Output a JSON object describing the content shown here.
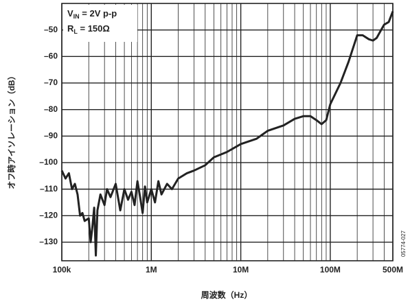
{
  "chart_data": {
    "type": "line",
    "log_x": true,
    "grid": true,
    "color": "#222222",
    "x_label": "周波数（Hz）",
    "y_label": "オフ時アイソレーション（dB）",
    "figure_id": "05774-027",
    "annotations": [
      {
        "main": "V",
        "sub": "IN",
        "rest": " = 2V p-p"
      },
      {
        "main": "R",
        "sub": "L",
        "rest": " = 150Ω"
      }
    ],
    "xlim": [
      100000,
      500000000
    ],
    "ylim": [
      -137,
      -40
    ],
    "xticks": [
      {
        "value": 100000,
        "label": "100k"
      },
      {
        "value": 1000000,
        "label": "1M"
      },
      {
        "value": 10000000,
        "label": "10M"
      },
      {
        "value": 100000000,
        "label": "100M"
      },
      {
        "value": 500000000,
        "label": "500M"
      }
    ],
    "yticks": [
      {
        "value": -130,
        "label": "–130"
      },
      {
        "value": -120,
        "label": "–120"
      },
      {
        "value": -110,
        "label": "–110"
      },
      {
        "value": -100,
        "label": "–100"
      },
      {
        "value": -90,
        "label": "–90"
      },
      {
        "value": -80,
        "label": "–80"
      },
      {
        "value": -70,
        "label": "–70"
      },
      {
        "value": -60,
        "label": "–60"
      },
      {
        "value": -50,
        "label": "–50"
      }
    ],
    "x": [
      100000,
      110000,
      120000,
      130000,
      140000,
      150000,
      160000,
      170000,
      180000,
      200000,
      210000,
      220000,
      230000,
      240000,
      250000,
      270000,
      300000,
      320000,
      350000,
      400000,
      450000,
      500000,
      550000,
      600000,
      650000,
      700000,
      750000,
      800000,
      850000,
      900000,
      1000000,
      1100000,
      1200000,
      1300000,
      1500000,
      1700000,
      2000000,
      2500000,
      3000000,
      4000000,
      5000000,
      7000000,
      10000000,
      15000000,
      20000000,
      30000000,
      40000000,
      50000000,
      60000000,
      70000000,
      80000000,
      90000000,
      100000000,
      130000000,
      160000000,
      200000000,
      230000000,
      270000000,
      300000000,
      330000000,
      370000000,
      400000000,
      450000000,
      500000000
    ],
    "values": [
      -103,
      -106,
      -104,
      -110,
      -108,
      -112,
      -120,
      -119,
      -122,
      -121,
      -130,
      -124,
      -117,
      -135,
      -118,
      -112,
      -116,
      -110,
      -113,
      -108,
      -118,
      -110,
      -114,
      -111,
      -116,
      -107,
      -113,
      -119,
      -109,
      -115,
      -110,
      -115,
      -107,
      -112,
      -108,
      -110,
      -106,
      -104,
      -103,
      -101,
      -98,
      -96,
      -93,
      -91,
      -88,
      -86,
      -83.5,
      -82.5,
      -82.5,
      -84,
      -85.5,
      -84,
      -78,
      -70,
      -62,
      -52,
      -52,
      -53.5,
      -54,
      -53,
      -50,
      -48,
      -47,
      -43
    ]
  }
}
